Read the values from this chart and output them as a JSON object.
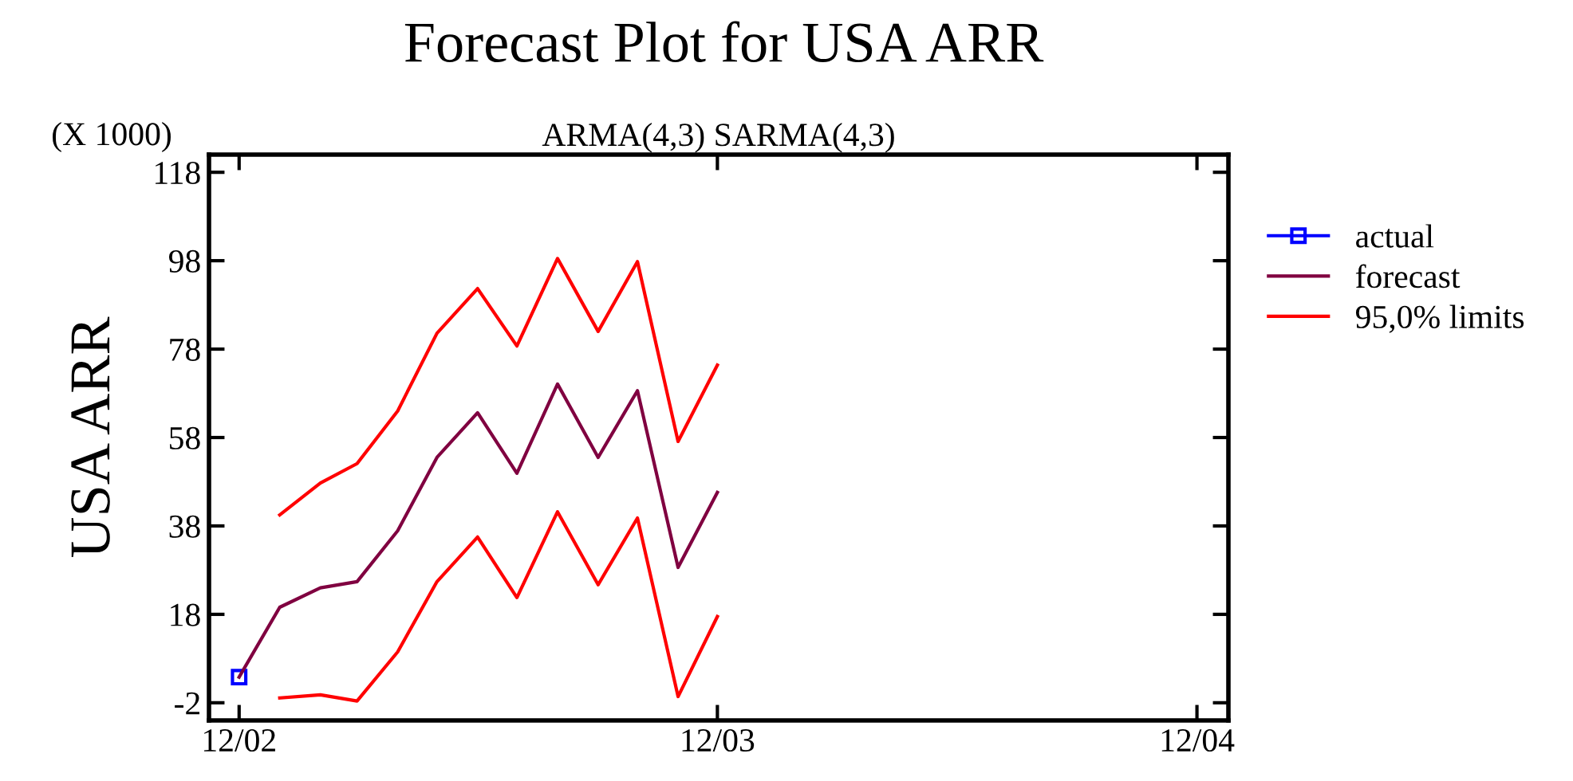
{
  "chart_data": {
    "type": "line",
    "title": "Forecast Plot for USA ARR",
    "subtitle": "ARMA(4,3) SARMA(4,3)",
    "ylabel": "USA ARR",
    "annotations": [
      "(X 1000)"
    ],
    "xlim": [
      "2002-11-08",
      "2004-12-25"
    ],
    "xticks": [
      {
        "value": "2002-12",
        "label": "12/02"
      },
      {
        "value": "2003-12",
        "label": "12/03"
      },
      {
        "value": "2004-12",
        "label": "12/04"
      }
    ],
    "ylim": [
      -6,
      122
    ],
    "yticks": [
      -2,
      18,
      38,
      58,
      78,
      98,
      118
    ],
    "grid": false,
    "legend": "right",
    "series": [
      {
        "name": "actual",
        "color": "#0000ff",
        "marker": "square",
        "x": [
          "2002-12"
        ],
        "values": [
          3.8
        ]
      },
      {
        "name": "forecast",
        "color": "#800040",
        "marker": "none",
        "x": [
          "2002-12",
          "2003-01",
          "2003-02",
          "2003-03",
          "2003-04",
          "2003-05",
          "2003-06",
          "2003-07",
          "2003-08",
          "2003-09",
          "2003-10",
          "2003-11",
          "2003-12"
        ],
        "values": [
          3.8,
          19.6,
          24,
          25.4,
          36.9,
          53.5,
          63.6,
          49.9,
          70.1,
          53.5,
          68.6,
          28.6,
          45.6
        ]
      },
      {
        "name": "95,0% limits",
        "color": "#ff0000",
        "marker": "none",
        "x": [
          "2003-01",
          "2003-02",
          "2003-03",
          "2003-04",
          "2003-05",
          "2003-06",
          "2003-07",
          "2003-08",
          "2003-09",
          "2003-10",
          "2003-11",
          "2003-12"
        ],
        "values": [
          40.5,
          47.7,
          52.1,
          64,
          81.6,
          91.7,
          78.7,
          98.5,
          82,
          97.8,
          57.1,
          74.4
        ]
      },
      {
        "color": "#ff0000",
        "marker": "none",
        "x": [
          "2003-01",
          "2003-02",
          "2003-03",
          "2003-04",
          "2003-05",
          "2003-06",
          "2003-07",
          "2003-08",
          "2003-09",
          "2003-10",
          "2003-11",
          "2003-12"
        ],
        "values": [
          -0.9,
          -0.2,
          -1.6,
          9.5,
          25.4,
          35.5,
          21.8,
          41.2,
          24.7,
          39.8,
          -0.6,
          17.5
        ]
      }
    ]
  }
}
